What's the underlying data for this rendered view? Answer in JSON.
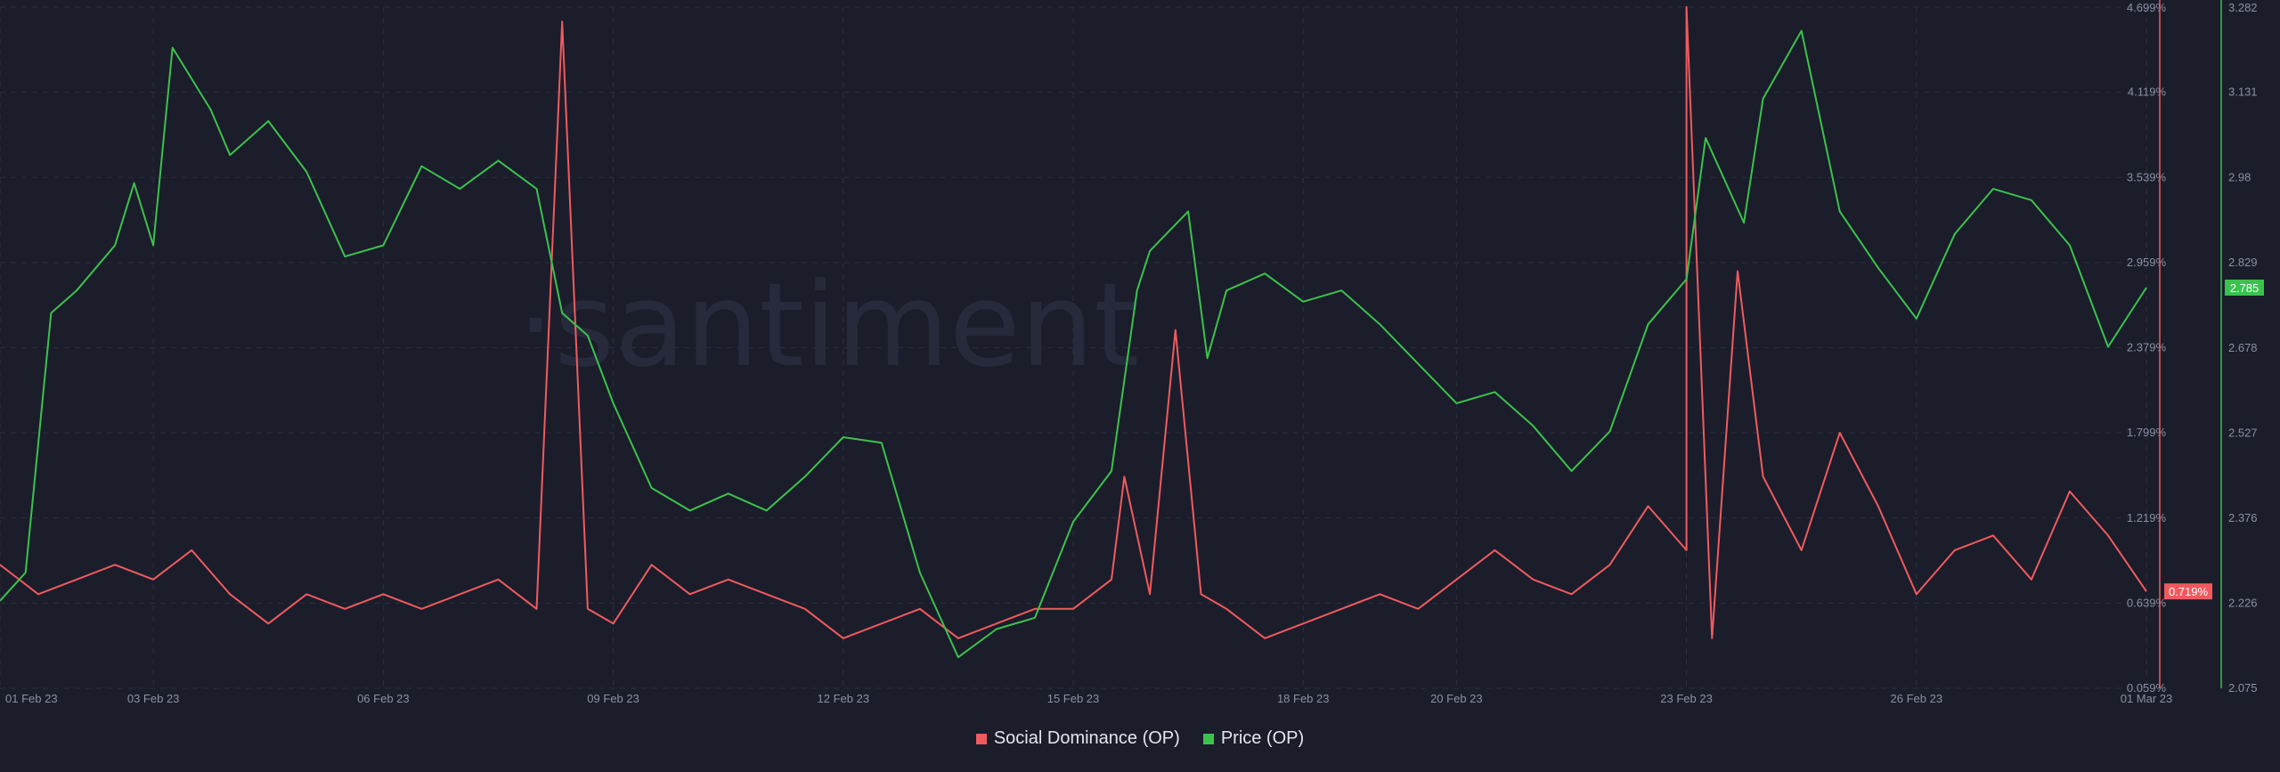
{
  "watermark": "·santiment",
  "colors": {
    "background": "#1b1d2b",
    "social": "#f05a5e",
    "price": "#3bc24c",
    "grid": "#2c2f40",
    "text": "#8b90a3"
  },
  "legend": {
    "social_label": "Social Dominance (OP)",
    "price_label": "Price (OP)"
  },
  "current": {
    "social_badge": "0.719%",
    "price_badge": "2.785"
  },
  "chart_data": {
    "type": "line",
    "x_axis": {
      "range": [
        "2023-02-01",
        "2023-03-01"
      ],
      "tick_labels": [
        "01 Feb 23",
        "03 Feb 23",
        "06 Feb 23",
        "09 Feb 23",
        "12 Feb 23",
        "15 Feb 23",
        "18 Feb 23",
        "20 Feb 23",
        "23 Feb 23",
        "26 Feb 23",
        "01 Mar 23"
      ],
      "tick_dates": [
        "2023-02-01",
        "2023-02-03",
        "2023-02-06",
        "2023-02-09",
        "2023-02-12",
        "2023-02-15",
        "2023-02-18",
        "2023-02-20",
        "2023-02-23",
        "2023-02-26",
        "2023-03-01"
      ]
    },
    "y_axis_left": {
      "label": "",
      "range": [
        0.059,
        4.699
      ],
      "tick_labels": [
        "0.059%",
        "0.639%",
        "1.219%",
        "1.799%",
        "2.379%",
        "2.959%",
        "3.539%",
        "4.119%",
        "4.699%"
      ],
      "tick_values": [
        0.059,
        0.639,
        1.219,
        1.799,
        2.379,
        2.959,
        3.539,
        4.119,
        4.699
      ]
    },
    "y_axis_right": {
      "label": "",
      "range": [
        2.075,
        3.282
      ],
      "tick_labels": [
        "2.075",
        "2.226",
        "2.376",
        "2.527",
        "2.678",
        "2.829",
        "2.98",
        "3.131",
        "3.282"
      ],
      "tick_values": [
        2.075,
        2.226,
        2.376,
        2.527,
        2.678,
        2.829,
        2.98,
        3.131,
        3.282
      ]
    },
    "grid": true,
    "legend_position": "bottom-center",
    "series": [
      {
        "name": "Social Dominance (OP)",
        "axis": "left",
        "points": [
          [
            "2023-02-01",
            0.9
          ],
          [
            "2023-02-01T12",
            0.7
          ],
          [
            "2023-02-02",
            0.8
          ],
          [
            "2023-02-02T12",
            0.9
          ],
          [
            "2023-02-03",
            0.8
          ],
          [
            "2023-02-03T12",
            1.0
          ],
          [
            "2023-02-04",
            0.7
          ],
          [
            "2023-02-04T12",
            0.5
          ],
          [
            "2023-02-05",
            0.7
          ],
          [
            "2023-02-05T12",
            0.6
          ],
          [
            "2023-02-06",
            0.7
          ],
          [
            "2023-02-06T12",
            0.6
          ],
          [
            "2023-02-07",
            0.7
          ],
          [
            "2023-02-07T12",
            0.8
          ],
          [
            "2023-02-08",
            0.6
          ],
          [
            "2023-02-08T08",
            4.6
          ],
          [
            "2023-02-08T16",
            0.6
          ],
          [
            "2023-02-09",
            0.5
          ],
          [
            "2023-02-09T12",
            0.9
          ],
          [
            "2023-02-10",
            0.7
          ],
          [
            "2023-02-10T12",
            0.8
          ],
          [
            "2023-02-11",
            0.7
          ],
          [
            "2023-02-11T12",
            0.6
          ],
          [
            "2023-02-12",
            0.4
          ],
          [
            "2023-02-12T12",
            0.5
          ],
          [
            "2023-02-13",
            0.6
          ],
          [
            "2023-02-13T12",
            0.4
          ],
          [
            "2023-02-14",
            0.5
          ],
          [
            "2023-02-14T12",
            0.6
          ],
          [
            "2023-02-15",
            0.6
          ],
          [
            "2023-02-15T12",
            0.8
          ],
          [
            "2023-02-15T16",
            1.5
          ],
          [
            "2023-02-16",
            0.7
          ],
          [
            "2023-02-16T08",
            2.5
          ],
          [
            "2023-02-16T16",
            0.7
          ],
          [
            "2023-02-17",
            0.6
          ],
          [
            "2023-02-17T12",
            0.4
          ],
          [
            "2023-02-18",
            0.5
          ],
          [
            "2023-02-18T12",
            0.6
          ],
          [
            "2023-02-19",
            0.7
          ],
          [
            "2023-02-19T12",
            0.6
          ],
          [
            "2023-02-20",
            0.8
          ],
          [
            "2023-02-20T12",
            1.0
          ],
          [
            "2023-02-21",
            0.8
          ],
          [
            "2023-02-21T12",
            0.7
          ],
          [
            "2023-02-22",
            0.9
          ],
          [
            "2023-02-22T12",
            1.3
          ],
          [
            "2023-02-23",
            1.0
          ],
          [
            "2023-02-23T00",
            4.7
          ],
          [
            "2023-02-23T08",
            0.4
          ],
          [
            "2023-02-23T16",
            2.9
          ],
          [
            "2023-02-24",
            1.5
          ],
          [
            "2023-02-24T12",
            1.0
          ],
          [
            "2023-02-25",
            1.8
          ],
          [
            "2023-02-25T12",
            1.3
          ],
          [
            "2023-02-26",
            0.7
          ],
          [
            "2023-02-26T12",
            1.0
          ],
          [
            "2023-02-27",
            1.1
          ],
          [
            "2023-02-27T12",
            0.8
          ],
          [
            "2023-02-28",
            1.4
          ],
          [
            "2023-02-28T12",
            1.1
          ],
          [
            "2023-03-01",
            0.719
          ]
        ]
      },
      {
        "name": "Price (OP)",
        "axis": "right",
        "points": [
          [
            "2023-02-01",
            2.23
          ],
          [
            "2023-02-01T08",
            2.28
          ],
          [
            "2023-02-01T16",
            2.74
          ],
          [
            "2023-02-02",
            2.78
          ],
          [
            "2023-02-02T12",
            2.86
          ],
          [
            "2023-02-02T18",
            2.97
          ],
          [
            "2023-02-03",
            2.86
          ],
          [
            "2023-02-03T06",
            3.21
          ],
          [
            "2023-02-03T18",
            3.1
          ],
          [
            "2023-02-04",
            3.02
          ],
          [
            "2023-02-04T12",
            3.08
          ],
          [
            "2023-02-05",
            2.99
          ],
          [
            "2023-02-05T12",
            2.84
          ],
          [
            "2023-02-06",
            2.86
          ],
          [
            "2023-02-06T12",
            3.0
          ],
          [
            "2023-02-07",
            2.96
          ],
          [
            "2023-02-07T12",
            3.01
          ],
          [
            "2023-02-08",
            2.96
          ],
          [
            "2023-02-08T08",
            2.74
          ],
          [
            "2023-02-08T16",
            2.7
          ],
          [
            "2023-02-09",
            2.58
          ],
          [
            "2023-02-09T12",
            2.43
          ],
          [
            "2023-02-10",
            2.39
          ],
          [
            "2023-02-10T12",
            2.42
          ],
          [
            "2023-02-11",
            2.39
          ],
          [
            "2023-02-11T12",
            2.45
          ],
          [
            "2023-02-12",
            2.52
          ],
          [
            "2023-02-12T12",
            2.51
          ],
          [
            "2023-02-13",
            2.28
          ],
          [
            "2023-02-13T12",
            2.13
          ],
          [
            "2023-02-14",
            2.18
          ],
          [
            "2023-02-14T12",
            2.2
          ],
          [
            "2023-02-15",
            2.37
          ],
          [
            "2023-02-15T12",
            2.46
          ],
          [
            "2023-02-15T20",
            2.78
          ],
          [
            "2023-02-16",
            2.85
          ],
          [
            "2023-02-16T12",
            2.92
          ],
          [
            "2023-02-16T18",
            2.66
          ],
          [
            "2023-02-17",
            2.78
          ],
          [
            "2023-02-17T12",
            2.81
          ],
          [
            "2023-02-18",
            2.76
          ],
          [
            "2023-02-18T12",
            2.78
          ],
          [
            "2023-02-19",
            2.72
          ],
          [
            "2023-02-19T12",
            2.65
          ],
          [
            "2023-02-20",
            2.58
          ],
          [
            "2023-02-20T12",
            2.6
          ],
          [
            "2023-02-21",
            2.54
          ],
          [
            "2023-02-21T12",
            2.46
          ],
          [
            "2023-02-22",
            2.53
          ],
          [
            "2023-02-22T12",
            2.72
          ],
          [
            "2023-02-23",
            2.8
          ],
          [
            "2023-02-23T06",
            3.05
          ],
          [
            "2023-02-23T18",
            2.9
          ],
          [
            "2023-02-24",
            3.12
          ],
          [
            "2023-02-24T12",
            3.24
          ],
          [
            "2023-02-25",
            2.92
          ],
          [
            "2023-02-25T12",
            2.82
          ],
          [
            "2023-02-26",
            2.73
          ],
          [
            "2023-02-26T12",
            2.88
          ],
          [
            "2023-02-27",
            2.96
          ],
          [
            "2023-02-27T12",
            2.94
          ],
          [
            "2023-02-28",
            2.86
          ],
          [
            "2023-02-28T12",
            2.68
          ],
          [
            "2023-03-01",
            2.785
          ]
        ]
      }
    ]
  }
}
